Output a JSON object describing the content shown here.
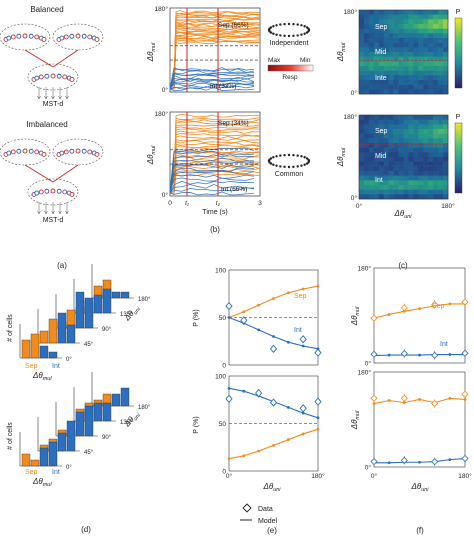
{
  "panel_a": {
    "label": "(a)",
    "balanced_title": "Balanced",
    "imbalanced_title": "Imbalanced",
    "mst_label": "MST-d"
  },
  "panel_b": {
    "label": "(b)",
    "y_label": "Δθ",
    "y_sub": "mul",
    "x_label": "Time (s)",
    "ticks": {
      "y_top": "180°",
      "y_bottom": "0°",
      "x": [
        "0",
        "t₁",
        "t₂",
        "3"
      ]
    },
    "top": {
      "sep_text": "Sep (66%)",
      "int_text": "Int (33%)",
      "mode": "Independent"
    },
    "bottom": {
      "sep_text": "Sep (34%)",
      "int_text": "Int (66%)",
      "mode": "Common"
    },
    "colorbar": {
      "max": "Max",
      "min": "Min",
      "label": "Resp"
    },
    "colors": {
      "sep": "#f28a1c",
      "int": "#2a6fc0",
      "marker": "#d42020"
    }
  },
  "panel_c": {
    "label": "(c)",
    "y_label": "Δθ",
    "y_sub": "mul",
    "x_label": "Δθ",
    "x_sub": "uni",
    "ticks": {
      "y_top": "180°",
      "y_bottom": "0°",
      "x_left": "0°",
      "x_right": "180°"
    },
    "cb_label": "P",
    "top_labels": [
      "Sep",
      "Mid",
      "Inte"
    ],
    "bottom_labels": [
      "Sep",
      "Mid",
      "Int"
    ]
  },
  "panel_d": {
    "label": "(d)",
    "ylabel": "# of cells",
    "axis_mul": "Δθ",
    "axis_mul_sub": "mul",
    "axis_uni": "Δθ",
    "axis_uni_sub": "uni",
    "sep": "Sep",
    "int": "Int",
    "depth_ticks": [
      "0°",
      "45°",
      "90°",
      "135°",
      "180°"
    ],
    "top_bars": [
      [
        3,
        4,
        2,
        1
      ],
      [
        2,
        4,
        5,
        3
      ],
      [
        1,
        3,
        6,
        5
      ],
      [
        1,
        2,
        3,
        4
      ],
      [
        2,
        3,
        1,
        1
      ]
    ],
    "bottom_bars": [
      [
        2,
        1,
        3,
        4
      ],
      [
        1,
        2,
        3,
        5
      ],
      [
        1,
        1,
        4,
        5
      ],
      [
        2,
        3,
        3,
        3
      ],
      [
        1,
        2,
        2,
        3
      ]
    ]
  },
  "panel_e": {
    "label": "(e)",
    "ylabel": "P (%)",
    "xlabel": "Δθ",
    "x_sub": "uni",
    "y_ticks": [
      "100",
      "50",
      "0"
    ],
    "x_ticks": [
      "0°",
      "180°"
    ],
    "sep": "Sep",
    "int": "Int",
    "legend_data": "Data",
    "legend_model": "Model"
  },
  "panel_f": {
    "label": "(f)",
    "ylabel": "Δθ",
    "ylabel_sub": "mul",
    "xlabel": "Δθ",
    "x_sub": "uni",
    "y_ticks": [
      "180°",
      "0°"
    ],
    "x_ticks": [
      "0°",
      "180°"
    ],
    "sep": "Sep",
    "int": "Int"
  },
  "chart_data": [
    {
      "type": "line",
      "panel": "e-top",
      "x": [
        0,
        30,
        60,
        90,
        120,
        150,
        180
      ],
      "ylim": [
        0,
        100
      ],
      "series": [
        {
          "name": "Sep",
          "values": [
            50,
            56,
            63,
            70,
            76,
            80,
            83
          ]
        },
        {
          "name": "Int",
          "values": [
            50,
            44,
            37,
            30,
            24,
            20,
            17
          ]
        }
      ],
      "data_points": {
        "Int_x": [
          0,
          30,
          90,
          150,
          180
        ],
        "Int_y": [
          62,
          47,
          17,
          27,
          13
        ]
      }
    },
    {
      "type": "line",
      "panel": "e-bottom",
      "x": [
        0,
        30,
        60,
        90,
        120,
        150,
        180
      ],
      "ylim": [
        0,
        100
      ],
      "series": [
        {
          "name": "Sep",
          "values": [
            13,
            16,
            21,
            27,
            33,
            39,
            44
          ]
        },
        {
          "name": "Int",
          "values": [
            87,
            84,
            79,
            73,
            67,
            61,
            56
          ]
        }
      ],
      "data_points": {
        "Int_x": [
          0,
          60,
          90,
          150,
          180
        ],
        "Int_y": [
          76,
          82,
          72,
          66,
          73
        ]
      }
    },
    {
      "type": "line",
      "panel": "f-top",
      "x": [
        0,
        30,
        60,
        90,
        120,
        150,
        180
      ],
      "ylim": [
        0,
        180
      ],
      "series": [
        {
          "name": "Sep",
          "values": [
            85,
            92,
            98,
            103,
            108,
            112,
            112
          ]
        },
        {
          "name": "Int",
          "values": [
            14,
            15,
            15,
            15,
            16,
            16,
            16
          ]
        }
      ]
    },
    {
      "type": "line",
      "panel": "f-bottom",
      "x": [
        0,
        30,
        60,
        90,
        120,
        150,
        180
      ],
      "ylim": [
        0,
        180
      ],
      "series": [
        {
          "name": "Sep",
          "values": [
            120,
            126,
            122,
            128,
            122,
            130,
            128
          ]
        },
        {
          "name": "Int",
          "values": [
            8,
            8,
            9,
            9,
            10,
            14,
            16
          ]
        }
      ]
    }
  ]
}
